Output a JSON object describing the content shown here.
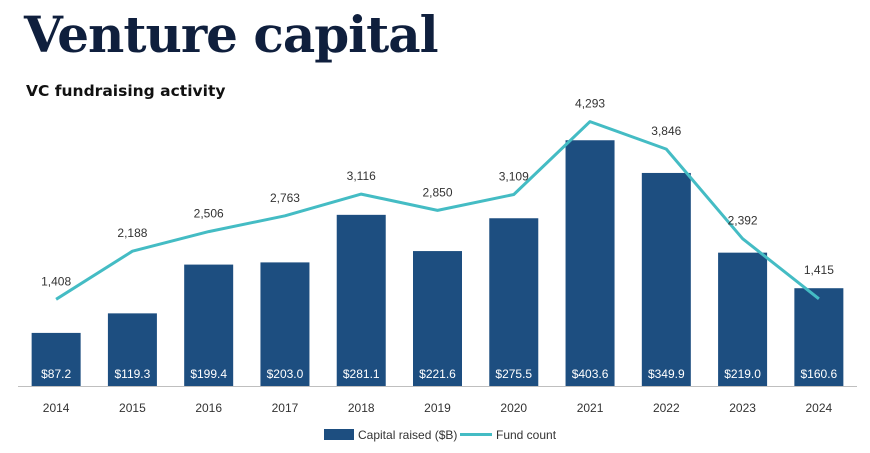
{
  "header": {
    "title": "Venture capital",
    "subtitle": "VC fundraising activity"
  },
  "chart_data": {
    "type": "bar",
    "categories": [
      "2014",
      "2015",
      "2016",
      "2017",
      "2018",
      "2019",
      "2020",
      "2021",
      "2022",
      "2023",
      "2024"
    ],
    "series": [
      {
        "name": "Capital raised ($B)",
        "kind": "bar",
        "axis": "primary",
        "color": "#1d4e80",
        "values": [
          87.2,
          119.3,
          199.4,
          203.0,
          281.1,
          221.6,
          275.5,
          403.6,
          349.9,
          219.0,
          160.6
        ],
        "labels": [
          "$87.2",
          "$119.3",
          "$199.4",
          "$203.0",
          "$281.1",
          "$221.6",
          "$275.5",
          "$403.6",
          "$349.9",
          "$219.0",
          "$160.6"
        ]
      },
      {
        "name": "Fund count",
        "kind": "line",
        "axis": "secondary",
        "color": "#44bcc4",
        "values": [
          1408,
          2188,
          2506,
          2763,
          3116,
          2850,
          3109,
          4293,
          3846,
          2392,
          1415
        ],
        "labels": [
          "1,408",
          "2,188",
          "2,506",
          "2,763",
          "3,116",
          "2,850",
          "3,109",
          "4,293",
          "3,846",
          "2,392",
          "1,415"
        ]
      }
    ],
    "title": "VC fundraising activity",
    "xlabel": "",
    "ylabel": "",
    "ylim": [
      0,
      450
    ],
    "y2lim": [
      0,
      5000
    ],
    "grid": false,
    "legend_position": "bottom-center"
  }
}
